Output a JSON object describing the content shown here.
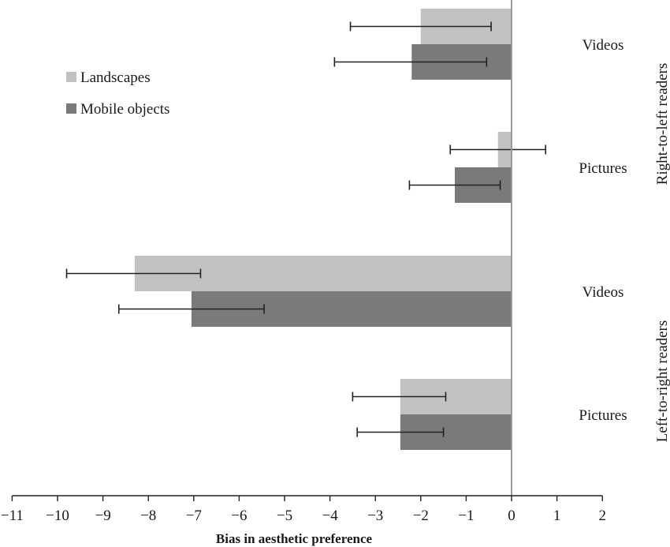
{
  "chart_data": {
    "type": "bar",
    "orientation": "horizontal",
    "xlabel": "Bias in aesthetic preference",
    "xlim": [
      -11,
      2
    ],
    "xticks": [
      -11,
      -10,
      -9,
      -8,
      -7,
      -6,
      -5,
      -4,
      -3,
      -2,
      -1,
      0,
      1,
      2
    ],
    "tick_labels": [
      "−11",
      "−10",
      "−9",
      "−8",
      "−7",
      "−6",
      "−5",
      "−4",
      "−3",
      "−2",
      "−1",
      "0",
      "1",
      "2"
    ],
    "grid": false,
    "legend_position": "top-left",
    "groups": [
      {
        "label": "Right-to-left readers",
        "categories": [
          "Videos",
          "Pictures"
        ]
      },
      {
        "label": "Left-to-right readers",
        "categories": [
          "Videos",
          "Pictures"
        ]
      }
    ],
    "categories": [
      "Right-to-left readers / Videos",
      "Right-to-left readers / Pictures",
      "Left-to-right readers / Videos",
      "Left-to-right readers / Pictures"
    ],
    "category_labels": [
      "Videos",
      "Pictures",
      "Videos",
      "Pictures"
    ],
    "series": [
      {
        "name": "Landscapes",
        "color": "#c2c2c2",
        "values": [
          -2.0,
          -0.3,
          -8.3,
          -2.45
        ],
        "error_low": [
          -3.55,
          -1.35,
          -9.8,
          -3.5
        ],
        "error_high": [
          -0.45,
          0.75,
          -6.85,
          -1.45
        ]
      },
      {
        "name": "Mobile objects",
        "color": "#7a7a7a",
        "values": [
          -2.2,
          -1.25,
          -7.05,
          -2.45
        ],
        "error_low": [
          -3.9,
          -2.25,
          -8.65,
          -3.4
        ],
        "error_high": [
          -0.55,
          -0.25,
          -5.45,
          -1.5
        ]
      }
    ]
  }
}
